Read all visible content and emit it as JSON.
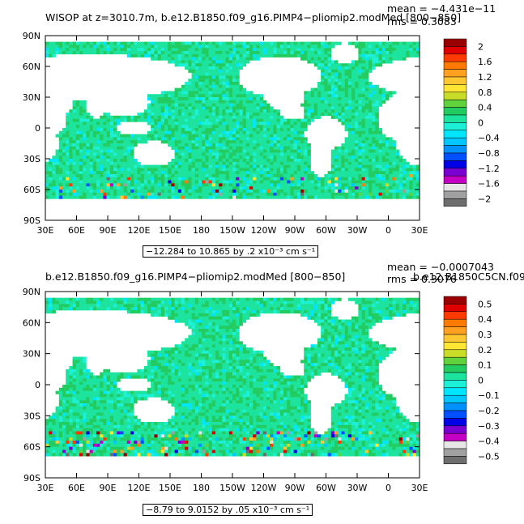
{
  "panels": [
    {
      "title": "WISOP at z=3010.7m, b.e12.B1850.f09_g16.PIMP4−pliomip2.modMed [800−850]",
      "mean": "mean = −4.431e−11",
      "rms": "rms = 0.3083",
      "lat_labels": [
        "90N",
        "60N",
        "30N",
        "0",
        "30S",
        "60S",
        "90S"
      ],
      "lon_labels": [
        "30E",
        "60E",
        "90E",
        "120E",
        "150E",
        "180",
        "150W",
        "120W",
        "90W",
        "60W",
        "30W",
        "0",
        "30E"
      ],
      "range_text": "−12.284 to 10.865 by .2 x10⁻³ cm s⁻¹",
      "colorbar_labels": [
        "2",
        "1.6",
        "1.2",
        "0.8",
        "0.4",
        "0",
        "−0.4",
        "−0.8",
        "−1.2",
        "−1.6",
        "−2"
      ],
      "noise_level": 0.35
    },
    {
      "title": "b.e12.B1850.f09_g16.PIMP4−pliomip2.modMed [800−850]",
      "title_right": "b.e12.B1850C5CN.f09",
      "mean": "mean = −0.0007043",
      "rms": "rms = 0.3076",
      "lat_labels": [
        "90N",
        "60N",
        "30N",
        "0",
        "30S",
        "60S",
        "90S"
      ],
      "lon_labels": [
        "30E",
        "60E",
        "90E",
        "120E",
        "150E",
        "180",
        "150W",
        "120W",
        "90W",
        "60W",
        "30W",
        "0",
        "30E"
      ],
      "range_text": "−8.79 to 9.0152 by .05 x10⁻³ cm s⁻¹",
      "colorbar_labels": [
        "0.5",
        "0.4",
        "0.3",
        "0.2",
        "0.1",
        "0",
        "−0.1",
        "−0.2",
        "−0.3",
        "−0.4",
        "−0.5"
      ],
      "noise_level": 1.0
    }
  ],
  "palette": [
    "#9a0000",
    "#e00000",
    "#ff3a00",
    "#ff7a00",
    "#ffa020",
    "#ffc832",
    "#ffe632",
    "#c8dc28",
    "#5fd23c",
    "#22cc60",
    "#1ce39e",
    "#1cf0d6",
    "#00e6ff",
    "#00c8ff",
    "#0092ff",
    "#0050ff",
    "#0000e6",
    "#7a00d2",
    "#c400c4",
    "#e6e6e6",
    "#a0a0a0",
    "#6e6e6e"
  ]
}
